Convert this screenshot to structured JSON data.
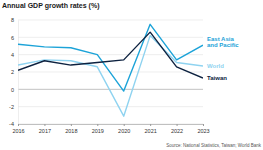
{
  "chart_data": {
    "type": "line",
    "title": "Annual GDP growth rates (%)",
    "source": "Source: National Statistics, Taiwan; World Bank",
    "x": [
      2016,
      2017,
      2018,
      2019,
      2020,
      2021,
      2022,
      2023
    ],
    "xlim": [
      2016,
      2023
    ],
    "xticks": [
      2016,
      2017,
      2018,
      2019,
      2020,
      2021,
      2022,
      2023
    ],
    "ylim": [
      -4,
      8
    ],
    "yticks": [
      -4,
      -2,
      0,
      2,
      4,
      6,
      8
    ],
    "grid": true,
    "legend": "right",
    "series": [
      {
        "name": "East Asia and Pacific",
        "color": "#1ca3d8",
        "values": [
          5.2,
          4.9,
          4.8,
          4.0,
          -0.2,
          7.5,
          3.4,
          5.1
        ]
      },
      {
        "name": "World",
        "color": "#8fd3f0",
        "values": [
          2.8,
          3.4,
          3.3,
          2.6,
          -3.1,
          6.2,
          3.1,
          2.7
        ]
      },
      {
        "name": "Taiwan",
        "color": "#0d2240",
        "values": [
          2.2,
          3.3,
          2.8,
          3.1,
          3.4,
          6.6,
          2.6,
          1.3
        ]
      }
    ]
  }
}
